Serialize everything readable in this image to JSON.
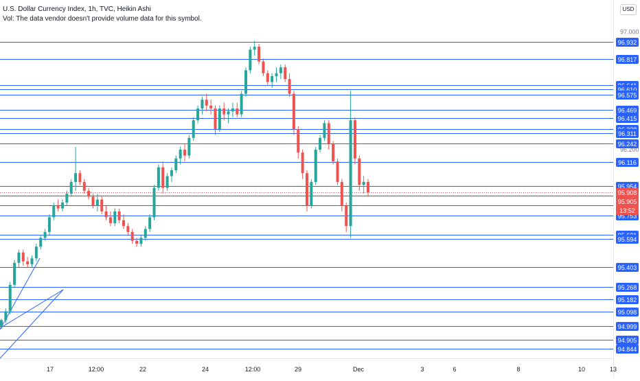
{
  "header": {
    "title": "U.S. Dollar Currency Index, 1h, TVC, Heikin Ashi",
    "volume_note": "Vol: The data vendor doesn't provide volume data for this symbol.",
    "currency_button": "USD"
  },
  "colors": {
    "level_line": "#2962ff",
    "label_bg": "#2962ff",
    "up_candle": "#26a69a",
    "down_candle": "#ef5350",
    "price_label_bg": "#ef5350",
    "axis_text": "#131722",
    "trendline": "#2962ff"
  },
  "chart_data": {
    "type": "candlestick",
    "style": "Heikin Ashi",
    "ylim": [
      94.78,
      97.05
    ],
    "y_ticks": [
      "97.000",
      "96.200"
    ],
    "x_ticks": [
      "17",
      "12:00",
      "22",
      "24",
      "12:00",
      "29",
      "Dec",
      "3",
      "6",
      "8",
      "10",
      "13"
    ],
    "level_labels": [
      "96.932",
      "96.817",
      "96.641",
      "96.610",
      "96.575",
      "96.469",
      "96.415",
      "96.338",
      "96.311",
      "96.242",
      "96.116",
      "95.954",
      "95.886",
      "95.822",
      "95.753",
      "95.621",
      "95.594",
      "95.403",
      "95.268",
      "95.182",
      "95.098",
      "94.999",
      "94.905",
      "94.844"
    ],
    "current_price": [
      "95.908",
      "95.905"
    ],
    "countdown": "13:52",
    "series": [
      {
        "values": [
          [
            95.0,
            95.05,
            94.98,
            95.04
          ],
          [
            95.04,
            95.12,
            95.02,
            95.1
          ],
          [
            95.1,
            95.3,
            95.08,
            95.28
          ],
          [
            95.28,
            95.45,
            95.26,
            95.43
          ],
          [
            95.43,
            95.52,
            95.4,
            95.5
          ],
          [
            95.5,
            95.52,
            95.41,
            95.44
          ],
          [
            95.44,
            95.47,
            95.4,
            95.42
          ],
          [
            95.42,
            95.48,
            95.4,
            95.46
          ],
          [
            95.46,
            95.56,
            95.44,
            95.54
          ],
          [
            95.54,
            95.62,
            95.52,
            95.6
          ],
          [
            95.6,
            95.66,
            95.58,
            95.64
          ],
          [
            95.64,
            95.76,
            95.62,
            95.74
          ],
          [
            95.74,
            95.84,
            95.72,
            95.82
          ],
          [
            95.82,
            95.86,
            95.78,
            95.8
          ],
          [
            95.8,
            95.86,
            95.78,
            95.84
          ],
          [
            95.84,
            95.92,
            95.82,
            95.9
          ],
          [
            95.9,
            96.0,
            95.88,
            95.98
          ],
          [
            95.98,
            96.22,
            95.92,
            96.04
          ],
          [
            96.04,
            96.06,
            95.96,
            95.98
          ],
          [
            95.98,
            96.0,
            95.9,
            95.92
          ],
          [
            95.92,
            95.94,
            95.86,
            95.88
          ],
          [
            95.88,
            95.9,
            95.8,
            95.82
          ],
          [
            95.82,
            95.9,
            95.78,
            95.86
          ],
          [
            95.86,
            95.88,
            95.76,
            95.78
          ],
          [
            95.78,
            95.82,
            95.72,
            95.74
          ],
          [
            95.74,
            95.78,
            95.68,
            95.7
          ],
          [
            95.7,
            95.8,
            95.68,
            95.78
          ],
          [
            95.78,
            95.8,
            95.7,
            95.72
          ],
          [
            95.72,
            95.76,
            95.66,
            95.68
          ],
          [
            95.68,
            95.7,
            95.62,
            95.64
          ],
          [
            95.64,
            95.66,
            95.56,
            95.58
          ],
          [
            95.58,
            95.6,
            95.54,
            95.56
          ],
          [
            95.56,
            95.62,
            95.54,
            95.6
          ],
          [
            95.6,
            95.68,
            95.58,
            95.66
          ],
          [
            95.66,
            95.76,
            95.64,
            95.74
          ],
          [
            95.74,
            95.96,
            95.72,
            95.94
          ],
          [
            95.94,
            96.1,
            95.92,
            96.08
          ],
          [
            96.08,
            96.12,
            95.9,
            95.94
          ],
          [
            95.94,
            96.04,
            95.92,
            96.02
          ],
          [
            96.02,
            96.08,
            95.98,
            96.06
          ],
          [
            96.06,
            96.16,
            96.04,
            96.14
          ],
          [
            96.14,
            96.22,
            96.1,
            96.2
          ],
          [
            96.2,
            96.24,
            96.12,
            96.16
          ],
          [
            96.16,
            96.3,
            96.14,
            96.28
          ],
          [
            96.28,
            96.42,
            96.26,
            96.4
          ],
          [
            96.4,
            96.5,
            96.38,
            96.48
          ],
          [
            96.48,
            96.56,
            96.44,
            96.54
          ],
          [
            96.54,
            96.58,
            96.46,
            96.5
          ],
          [
            96.5,
            96.54,
            96.44,
            96.48
          ],
          [
            96.48,
            96.5,
            96.3,
            96.34
          ],
          [
            96.34,
            96.5,
            96.32,
            96.48
          ],
          [
            96.48,
            96.52,
            96.4,
            96.44
          ],
          [
            96.44,
            96.48,
            96.38,
            96.46
          ],
          [
            96.46,
            96.52,
            96.42,
            96.48
          ],
          [
            96.48,
            96.52,
            96.42,
            96.44
          ],
          [
            96.44,
            96.6,
            96.42,
            96.58
          ],
          [
            96.58,
            96.76,
            96.56,
            96.74
          ],
          [
            96.74,
            96.9,
            96.72,
            96.88
          ],
          [
            96.88,
            96.94,
            96.84,
            96.9
          ],
          [
            96.9,
            96.92,
            96.78,
            96.8
          ],
          [
            96.8,
            96.82,
            96.7,
            96.72
          ],
          [
            96.72,
            96.74,
            96.64,
            96.66
          ],
          [
            96.66,
            96.72,
            96.62,
            96.7
          ],
          [
            96.7,
            96.76,
            96.66,
            96.72
          ],
          [
            96.72,
            96.78,
            96.68,
            96.76
          ],
          [
            96.76,
            96.78,
            96.66,
            96.68
          ],
          [
            96.68,
            96.72,
            96.56,
            96.58
          ],
          [
            96.58,
            96.6,
            96.3,
            96.34
          ],
          [
            96.34,
            96.36,
            96.14,
            96.18
          ],
          [
            96.18,
            96.2,
            96.0,
            96.04
          ],
          [
            96.04,
            96.06,
            95.78,
            95.82
          ],
          [
            95.82,
            96.0,
            95.8,
            95.98
          ],
          [
            95.98,
            96.22,
            95.96,
            96.2
          ],
          [
            96.2,
            96.3,
            96.18,
            96.28
          ],
          [
            96.28,
            96.4,
            96.26,
            96.38
          ],
          [
            96.38,
            96.4,
            96.2,
            96.24
          ],
          [
            96.24,
            96.26,
            96.1,
            96.12
          ],
          [
            96.12,
            96.14,
            95.96,
            95.98
          ],
          [
            95.98,
            96.0,
            95.78,
            95.82
          ],
          [
            95.82,
            95.84,
            95.64,
            95.68
          ],
          [
            95.68,
            96.6,
            95.6,
            96.4
          ],
          [
            96.4,
            96.42,
            96.1,
            96.14
          ],
          [
            96.14,
            96.16,
            95.92,
            95.96
          ],
          [
            95.96,
            96.02,
            95.9,
            95.98
          ],
          [
            95.98,
            96.0,
            95.88,
            95.91
          ]
        ]
      }
    ]
  }
}
